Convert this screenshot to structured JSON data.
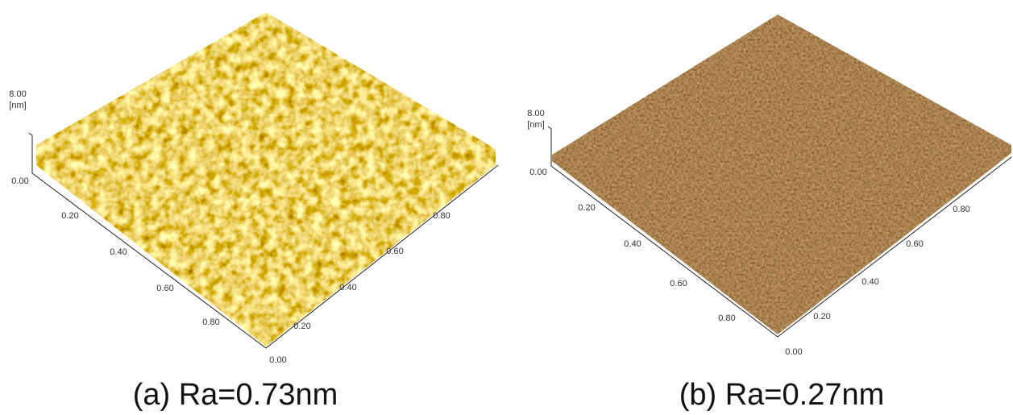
{
  "panels": [
    {
      "caption": "(a) Ra=0.73nm",
      "z_top": "8.00",
      "z_unit": "[nm]",
      "z_bottom": "0.00",
      "left_ticks": [
        "0.20",
        "0.40",
        "0.60",
        "0.80"
      ],
      "corner": "0.00",
      "right_ticks": [
        "0.20",
        "0.40",
        "0.60",
        "0.80"
      ]
    },
    {
      "caption": "(b) Ra=0.27nm",
      "z_top": "8.00",
      "z_unit": "[nm]",
      "z_bottom": "0.00",
      "left_ticks": [
        "0.20",
        "0.40",
        "0.60",
        "0.80"
      ],
      "corner": "0.00",
      "right_ticks": [
        "0.20",
        "0.40",
        "0.60",
        "0.80"
      ]
    }
  ]
}
